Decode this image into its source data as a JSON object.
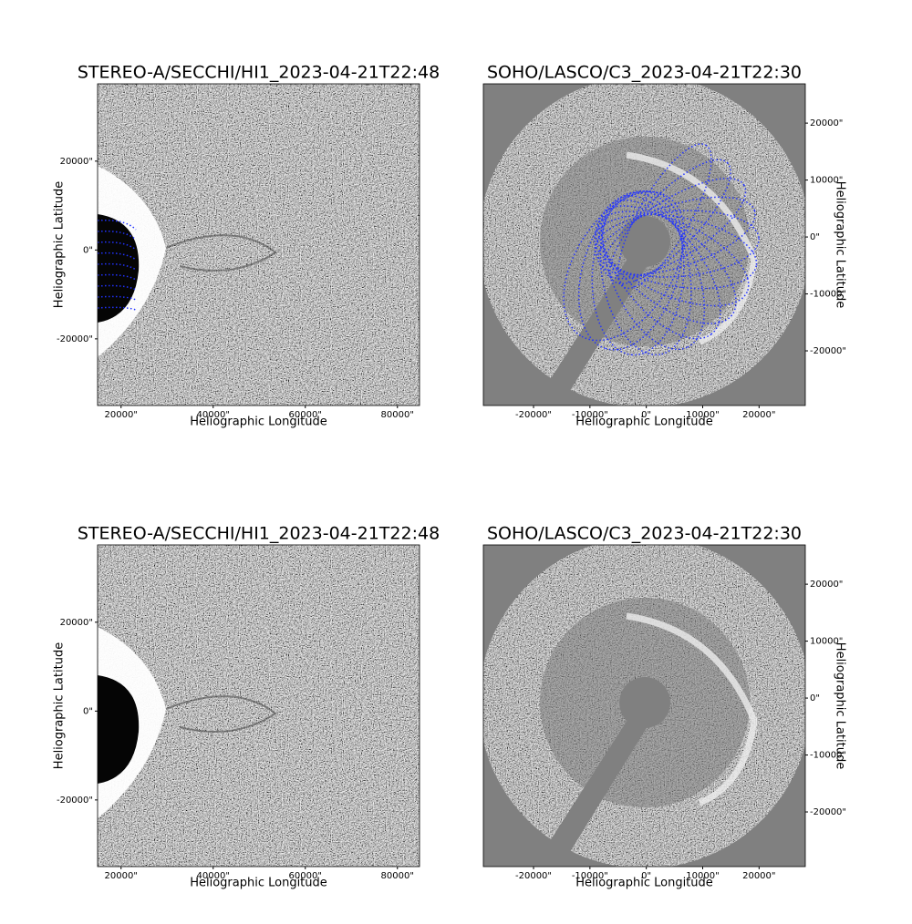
{
  "chart_data": [
    {
      "type": "image",
      "title": "STEREO-A/SECCHI/HI1_2023-04-21T22:48",
      "x_label": "Heliographic Longitude",
      "y_label": "Heliographic Latitude",
      "xlim": [
        14900,
        84800
      ],
      "ylim": [
        -35000,
        37400
      ],
      "xticks": [
        {
          "value": 20000,
          "label": "20000\""
        },
        {
          "value": 40000,
          "label": "40000\""
        },
        {
          "value": 60000,
          "label": "60000\""
        },
        {
          "value": 80000,
          "label": "80000\""
        }
      ],
      "yticks": [
        {
          "value": -20000,
          "label": "-20000\""
        },
        {
          "value": 0,
          "label": "0\""
        },
        {
          "value": 20000,
          "label": "20000\""
        }
      ],
      "y_axis_side": "left",
      "instrument": "hi1",
      "wireframe": true
    },
    {
      "type": "image",
      "title": "SOHO/LASCO/C3_2023-04-21T22:30",
      "x_label": "Heliographic Longitude",
      "y_label": "Heliographic Latitude",
      "xlim": [
        -28900,
        28200
      ],
      "ylim": [
        -29600,
        26900
      ],
      "xticks": [
        {
          "value": -20000,
          "label": "-20000\""
        },
        {
          "value": -10000,
          "label": "-10000\""
        },
        {
          "value": 0,
          "label": "0\""
        },
        {
          "value": 10000,
          "label": "10000\""
        },
        {
          "value": 20000,
          "label": "20000\""
        }
      ],
      "yticks": [
        {
          "value": -20000,
          "label": "-20000\""
        },
        {
          "value": -10000,
          "label": "-10000\""
        },
        {
          "value": 0,
          "label": "0\""
        },
        {
          "value": 10000,
          "label": "10000\""
        },
        {
          "value": 20000,
          "label": "20000\""
        }
      ],
      "y_axis_side": "right",
      "instrument": "c3",
      "wireframe": true
    },
    {
      "type": "image",
      "title": "STEREO-A/SECCHI/HI1_2023-04-21T22:48",
      "x_label": "Heliographic Longitude",
      "y_label": "Heliographic Latitude",
      "xlim": [
        14900,
        84800
      ],
      "ylim": [
        -35000,
        37400
      ],
      "xticks": [
        {
          "value": 20000,
          "label": "20000\""
        },
        {
          "value": 40000,
          "label": "40000\""
        },
        {
          "value": 60000,
          "label": "60000\""
        },
        {
          "value": 80000,
          "label": "80000\""
        }
      ],
      "yticks": [
        {
          "value": -20000,
          "label": "-20000\""
        },
        {
          "value": 0,
          "label": "0\""
        },
        {
          "value": 20000,
          "label": "20000\""
        }
      ],
      "y_axis_side": "left",
      "instrument": "hi1",
      "wireframe": false
    },
    {
      "type": "image",
      "title": "SOHO/LASCO/C3_2023-04-21T22:30",
      "x_label": "Heliographic Longitude",
      "y_label": "Heliographic Latitude",
      "xlim": [
        -28900,
        28200
      ],
      "ylim": [
        -29600,
        26900
      ],
      "xticks": [
        {
          "value": -20000,
          "label": "-20000\""
        },
        {
          "value": -10000,
          "label": "-10000\""
        },
        {
          "value": 0,
          "label": "0\""
        },
        {
          "value": 10000,
          "label": "10000\""
        },
        {
          "value": 20000,
          "label": "20000\""
        }
      ],
      "yticks": [
        {
          "value": -20000,
          "label": "-20000\""
        },
        {
          "value": -10000,
          "label": "-10000\""
        },
        {
          "value": 0,
          "label": "0\""
        },
        {
          "value": 10000,
          "label": "10000\""
        },
        {
          "value": 20000,
          "label": "20000\""
        }
      ],
      "y_axis_side": "right",
      "instrument": "c3",
      "wireframe": false
    }
  ]
}
